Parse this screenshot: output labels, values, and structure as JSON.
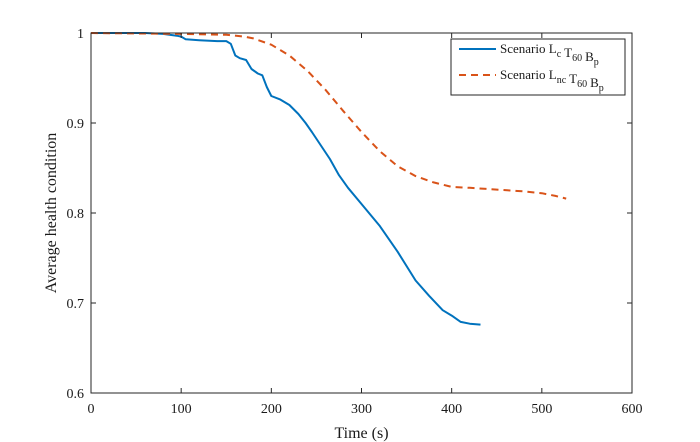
{
  "chart_data": {
    "type": "line",
    "xlabel": "Time (s)",
    "ylabel": "Average health condition",
    "xlim": [
      0,
      600
    ],
    "ylim": [
      0.6,
      1.0
    ],
    "x_ticks": [
      0,
      100,
      200,
      300,
      400,
      500,
      600
    ],
    "y_ticks": [
      0.6,
      0.7,
      0.8,
      0.9,
      1.0
    ],
    "x_tick_labels": [
      "0",
      "100",
      "200",
      "300",
      "400",
      "500",
      "600"
    ],
    "y_tick_labels": [
      "0.6",
      "0.7",
      "0.8",
      "0.9",
      "1"
    ],
    "grid": false,
    "legend_position": "top-right",
    "series": [
      {
        "legend": {
          "prefix": "Scenario ",
          "parts": [
            [
              "L",
              "c"
            ],
            [
              "T",
              "60"
            ],
            [
              "B",
              "p"
            ]
          ]
        },
        "color": "#0072BD",
        "style": "solid",
        "points": [
          [
            0,
            1.0
          ],
          [
            60,
            1.0
          ],
          [
            80,
            0.999
          ],
          [
            95,
            0.997
          ],
          [
            100,
            0.996
          ],
          [
            105,
            0.993
          ],
          [
            120,
            0.992
          ],
          [
            140,
            0.991
          ],
          [
            150,
            0.991
          ],
          [
            155,
            0.988
          ],
          [
            160,
            0.975
          ],
          [
            165,
            0.972
          ],
          [
            172,
            0.97
          ],
          [
            178,
            0.96
          ],
          [
            185,
            0.955
          ],
          [
            190,
            0.953
          ],
          [
            195,
            0.94
          ],
          [
            200,
            0.93
          ],
          [
            210,
            0.926
          ],
          [
            220,
            0.92
          ],
          [
            230,
            0.91
          ],
          [
            238,
            0.9
          ],
          [
            245,
            0.89
          ],
          [
            255,
            0.875
          ],
          [
            265,
            0.86
          ],
          [
            275,
            0.842
          ],
          [
            285,
            0.828
          ],
          [
            300,
            0.81
          ],
          [
            320,
            0.786
          ],
          [
            340,
            0.757
          ],
          [
            360,
            0.725
          ],
          [
            375,
            0.708
          ],
          [
            390,
            0.692
          ],
          [
            400,
            0.686
          ],
          [
            410,
            0.679
          ],
          [
            420,
            0.677
          ],
          [
            432,
            0.676
          ]
        ]
      },
      {
        "legend": {
          "prefix": "Scenario ",
          "parts": [
            [
              "L",
              "nc"
            ],
            [
              "T",
              "60"
            ],
            [
              "B",
              "p"
            ]
          ]
        },
        "color": "#D95319",
        "style": "dashed",
        "points": [
          [
            0,
            1.0
          ],
          [
            100,
            0.999
          ],
          [
            150,
            0.998
          ],
          [
            170,
            0.996
          ],
          [
            180,
            0.994
          ],
          [
            200,
            0.987
          ],
          [
            220,
            0.975
          ],
          [
            240,
            0.958
          ],
          [
            260,
            0.937
          ],
          [
            280,
            0.913
          ],
          [
            300,
            0.89
          ],
          [
            320,
            0.869
          ],
          [
            340,
            0.852
          ],
          [
            360,
            0.841
          ],
          [
            380,
            0.834
          ],
          [
            400,
            0.829
          ],
          [
            420,
            0.828
          ],
          [
            450,
            0.826
          ],
          [
            480,
            0.824
          ],
          [
            500,
            0.822
          ],
          [
            515,
            0.819
          ],
          [
            527,
            0.816
          ]
        ]
      }
    ]
  }
}
